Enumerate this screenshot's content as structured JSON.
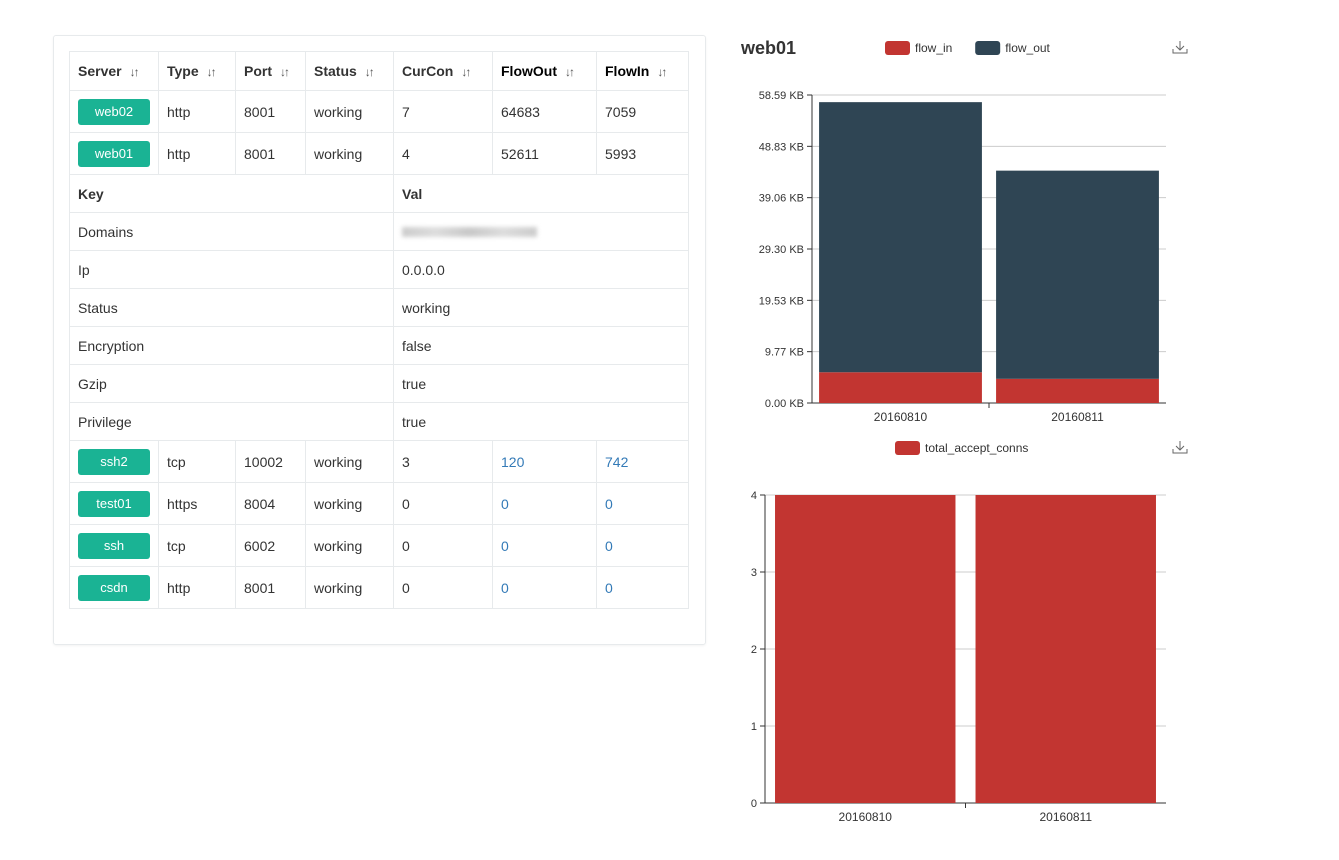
{
  "table": {
    "headers": [
      "Server",
      "Type",
      "Port",
      "Status",
      "CurCon",
      "FlowOut",
      "FlowIn"
    ],
    "sort_icon": "sort-icon",
    "rows_top": [
      {
        "server": "web02",
        "type": "http",
        "port": "8001",
        "status": "working",
        "curcon": "7",
        "flowout": "64683",
        "flowin": "7059"
      },
      {
        "server": "web01",
        "type": "http",
        "port": "8001",
        "status": "working",
        "curcon": "4",
        "flowout": "52611",
        "flowin": "5993"
      }
    ],
    "detail": {
      "key_header": "Key",
      "val_header": "Val",
      "rows": [
        {
          "key": "Domains",
          "val": ""
        },
        {
          "key": "Ip",
          "val": "0.0.0.0"
        },
        {
          "key": "Status",
          "val": "working"
        },
        {
          "key": "Encryption",
          "val": "false"
        },
        {
          "key": "Gzip",
          "val": "true"
        },
        {
          "key": "Privilege",
          "val": "true"
        }
      ]
    },
    "rows_bottom": [
      {
        "server": "ssh2",
        "type": "tcp",
        "port": "10002",
        "status": "working",
        "curcon": "3",
        "flowout": "120",
        "flowin": "742"
      },
      {
        "server": "test01",
        "type": "https",
        "port": "8004",
        "status": "working",
        "curcon": "0",
        "flowout": "0",
        "flowin": "0"
      },
      {
        "server": "ssh",
        "type": "tcp",
        "port": "6002",
        "status": "working",
        "curcon": "0",
        "flowout": "0",
        "flowin": "0"
      },
      {
        "server": "csdn",
        "type": "http",
        "port": "8001",
        "status": "working",
        "curcon": "0",
        "flowout": "0",
        "flowin": "0"
      }
    ]
  },
  "chart_title": "web01",
  "colors": {
    "accent": "#1ab394",
    "flow_in": "#c23531",
    "flow_out": "#2f4554"
  },
  "chart_data": [
    {
      "type": "bar",
      "stacked": true,
      "categories": [
        "20160810",
        "20160811"
      ],
      "series": [
        {
          "name": "flow_in",
          "values": [
            5.85,
            4.6
          ]
        },
        {
          "name": "flow_out",
          "values": [
            51.38,
            39.6
          ]
        }
      ],
      "yticks": [
        "0.00 KB",
        "9.77 KB",
        "19.53 KB",
        "29.30 KB",
        "39.06 KB",
        "48.83 KB",
        "58.59 KB"
      ],
      "ylim": [
        0,
        58.59
      ],
      "unit": "KB",
      "legend": "top",
      "grid": true,
      "toolbox_icon": "download-icon"
    },
    {
      "type": "bar",
      "categories": [
        "20160810",
        "20160811"
      ],
      "series": [
        {
          "name": "total_accept_conns",
          "values": [
            4,
            4
          ]
        }
      ],
      "yticks": [
        "0",
        "1",
        "2",
        "3",
        "4"
      ],
      "ylim": [
        0,
        4
      ],
      "legend": "top",
      "grid": true,
      "toolbox_icon": "download-icon"
    }
  ]
}
